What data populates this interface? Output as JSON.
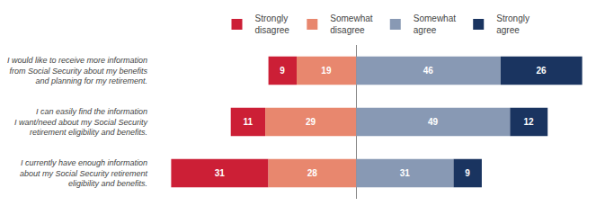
{
  "chart_data": {
    "type": "bar",
    "orientation": "horizontal",
    "stacked": true,
    "data_labels": true,
    "tick_labels": "y",
    "grid": false,
    "legend": "top",
    "categories": [
      "I would like to receive more information\nfrom Social Security about my benefits\nand planning for my retirement.",
      "I can easily find the information\nI want/need about my Social Security\nretirement eligibility and benefits.",
      "I currently have enough information\nabout my Social Security retirement\neligibility and benefits."
    ],
    "series": [
      {
        "name": "Strongly\ndisagree",
        "color": "#cc1f36",
        "values": [
          9,
          11,
          31
        ]
      },
      {
        "name": "Somewhat\ndisagree",
        "color": "#e8876e",
        "values": [
          19,
          29,
          28
        ]
      },
      {
        "name": "Somewhat\nagree",
        "color": "#8899b4",
        "values": [
          46,
          49,
          31
        ]
      },
      {
        "name": "Strongly\nagree",
        "color": "#1a3460",
        "values": [
          26,
          12,
          9
        ]
      }
    ]
  }
}
